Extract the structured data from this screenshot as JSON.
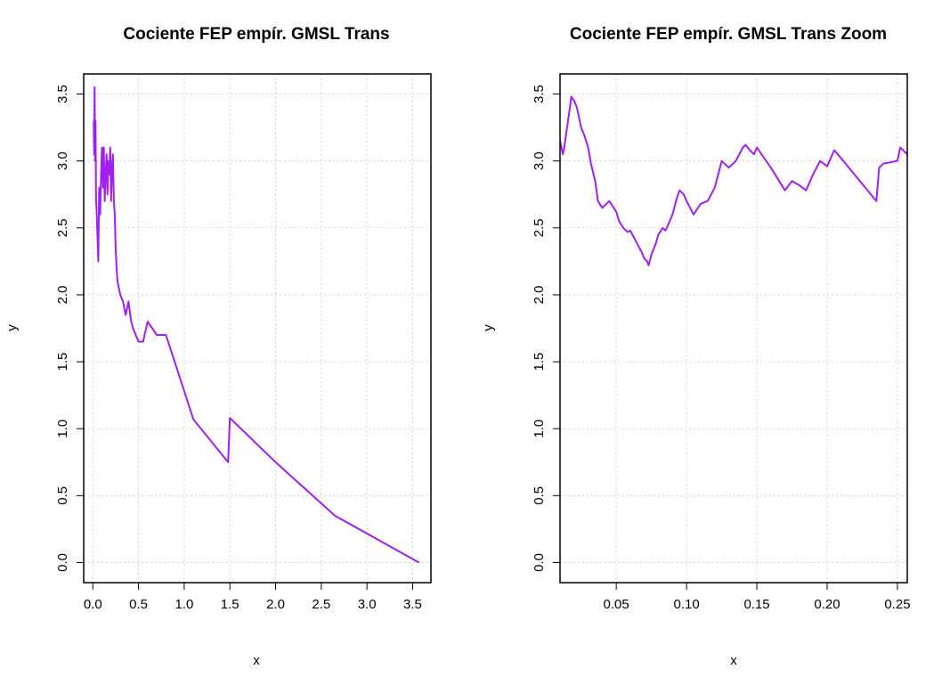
{
  "chart_data": [
    {
      "type": "line",
      "title": "Cociente FEP empír. GMSL Trans",
      "xlabel": "x",
      "ylabel": "y",
      "xlim": [
        -0.1,
        3.7
      ],
      "ylim": [
        -0.15,
        3.65
      ],
      "xticks": [
        0,
        0.5,
        1,
        1.5,
        2,
        2.5,
        3,
        3.5
      ],
      "xtick_labels": [
        "0.0",
        "0.5",
        "1.0",
        "1.5",
        "2.0",
        "2.5",
        "3.0",
        "3.5"
      ],
      "yticks": [
        0,
        0.5,
        1,
        1.5,
        2,
        2.5,
        3,
        3.5
      ],
      "ytick_labels": [
        "0.0",
        "0.5",
        "1.0",
        "1.5",
        "2.0",
        "2.5",
        "3.0",
        "3.5"
      ],
      "grid": true,
      "color": "#a020f0",
      "series": [
        {
          "x": [
            0.01,
            0.015,
            0.02,
            0.025,
            0.03,
            0.035,
            0.04,
            0.05,
            0.06,
            0.07,
            0.08,
            0.09,
            0.1,
            0.11,
            0.12,
            0.13,
            0.14,
            0.15,
            0.16,
            0.17,
            0.18,
            0.19,
            0.2,
            0.21,
            0.22,
            0.23,
            0.24,
            0.25,
            0.26,
            0.27,
            0.3,
            0.33,
            0.36,
            0.39,
            0.4,
            0.42,
            0.44,
            0.5,
            0.55,
            0.6,
            0.7,
            0.8,
            1.1,
            1.48,
            1.5,
            2.0,
            2.65,
            3.57
          ],
          "y": [
            3.3,
            3.05,
            3.55,
            3.0,
            3.3,
            2.7,
            2.65,
            2.45,
            2.25,
            2.8,
            2.6,
            2.9,
            3.1,
            2.8,
            3.1,
            2.7,
            2.9,
            3.05,
            2.75,
            3.0,
            2.9,
            3.1,
            2.7,
            2.95,
            3.05,
            2.7,
            2.6,
            2.35,
            2.2,
            2.1,
            2.0,
            1.95,
            1.85,
            1.95,
            1.9,
            1.8,
            1.75,
            1.65,
            1.65,
            1.8,
            1.7,
            1.7,
            1.07,
            0.75,
            1.08,
            0.75,
            0.35,
            0.0
          ]
        }
      ]
    },
    {
      "type": "line",
      "title": "Cociente FEP empír. GMSL Trans Zoom",
      "xlabel": "x",
      "ylabel": "y",
      "xlim": [
        0.01,
        0.257
      ],
      "ylim": [
        -0.15,
        3.65
      ],
      "xticks": [
        0.05,
        0.1,
        0.15,
        0.2,
        0.25
      ],
      "xtick_labels": [
        "0.05",
        "0.10",
        "0.15",
        "0.20",
        "0.25"
      ],
      "yticks": [
        0,
        0.5,
        1,
        1.5,
        2,
        2.5,
        3,
        3.5
      ],
      "ytick_labels": [
        "0.0",
        "0.5",
        "1.0",
        "1.5",
        "2.0",
        "2.5",
        "3.0",
        "3.5"
      ],
      "grid": true,
      "color": "#a020f0",
      "series": [
        {
          "x": [
            0.01,
            0.012,
            0.013,
            0.015,
            0.017,
            0.018,
            0.02,
            0.022,
            0.025,
            0.027,
            0.03,
            0.032,
            0.035,
            0.037,
            0.04,
            0.045,
            0.05,
            0.052,
            0.055,
            0.058,
            0.06,
            0.063,
            0.065,
            0.068,
            0.07,
            0.072,
            0.073,
            0.075,
            0.078,
            0.08,
            0.083,
            0.085,
            0.088,
            0.09,
            0.093,
            0.095,
            0.098,
            0.1,
            0.105,
            0.11,
            0.115,
            0.12,
            0.125,
            0.13,
            0.135,
            0.14,
            0.142,
            0.145,
            0.148,
            0.15,
            0.16,
            0.17,
            0.175,
            0.18,
            0.185,
            0.19,
            0.195,
            0.2,
            0.205,
            0.21,
            0.235,
            0.237,
            0.24,
            0.25,
            0.252,
            0.257
          ],
          "y": [
            3.15,
            3.05,
            3.1,
            3.25,
            3.4,
            3.48,
            3.45,
            3.4,
            3.25,
            3.2,
            3.1,
            2.98,
            2.85,
            2.7,
            2.65,
            2.7,
            2.62,
            2.55,
            2.5,
            2.47,
            2.48,
            2.42,
            2.38,
            2.32,
            2.27,
            2.25,
            2.22,
            2.3,
            2.38,
            2.45,
            2.5,
            2.48,
            2.55,
            2.6,
            2.72,
            2.78,
            2.75,
            2.7,
            2.6,
            2.68,
            2.7,
            2.8,
            3.0,
            2.95,
            3.0,
            3.1,
            3.12,
            3.08,
            3.05,
            3.1,
            2.95,
            2.78,
            2.85,
            2.82,
            2.78,
            2.9,
            3.0,
            2.96,
            3.08,
            3.02,
            2.7,
            2.95,
            2.98,
            3.0,
            3.1,
            3.05
          ]
        }
      ]
    }
  ]
}
